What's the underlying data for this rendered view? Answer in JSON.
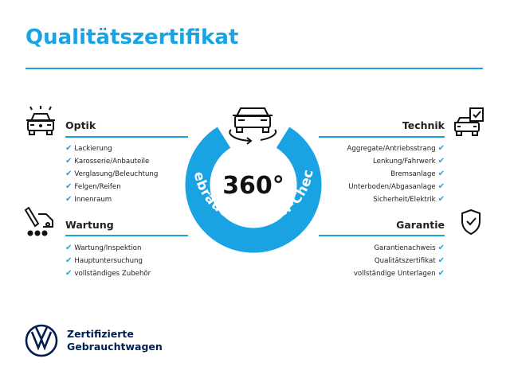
{
  "title": "Qualitätszertifikat",
  "center": {
    "value": "360°",
    "ring_text": "Gebrauchtwagen-Check"
  },
  "colors": {
    "accent": "#1aa3e3",
    "brand": "#001e50"
  },
  "sections": {
    "optik": {
      "title": "Optik",
      "icon": "car-lights-icon",
      "items": [
        "Lackierung",
        "Karosserie/Anbauteile",
        "Verglasung/Beleuchtung",
        "Felgen/Reifen",
        "Innenraum"
      ]
    },
    "wartung": {
      "title": "Wartung",
      "icon": "service-tools-icon",
      "items": [
        "Wartung/Inspektion",
        "Hauptuntersuchung",
        "vollständiges Zubehör"
      ]
    },
    "technik": {
      "title": "Technik",
      "icon": "car-checklist-icon",
      "items": [
        "Aggregate/Antriebsstrang",
        "Lenkung/Fahrwerk",
        "Bremsanlage",
        "Unterboden/Abgasanlage",
        "Sicherheit/Elektrik"
      ]
    },
    "garantie": {
      "title": "Garantie",
      "icon": "shield-check-icon",
      "items": [
        "Garantienachweis",
        "Qualitätszertifikat",
        "vollständige Unterlagen"
      ]
    }
  },
  "check_icon": "✔",
  "footer": {
    "line1": "Zertifizierte",
    "line2": "Gebrauchtwagen"
  }
}
